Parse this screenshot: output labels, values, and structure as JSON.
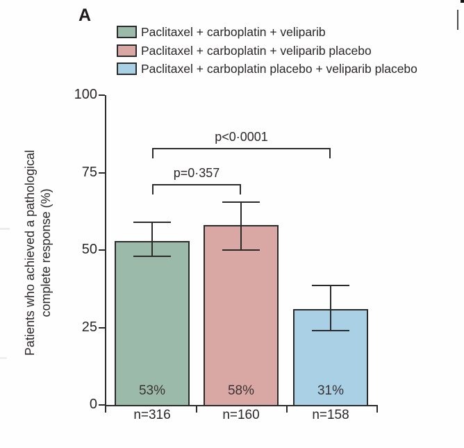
{
  "panel_label": "A",
  "legend": {
    "items": [
      {
        "label": "Paclitaxel + carboplatin + veliparib",
        "color": "#9cbaa9"
      },
      {
        "label": "Paclitaxel + carboplatin + veliparib placebo",
        "color": "#d9a7a4"
      },
      {
        "label": "Paclitaxel + carboplatin placebo + veliparib placebo",
        "color": "#a9d0e4"
      }
    ]
  },
  "y_axis": {
    "label_line1": "Patients who achieved a pathological",
    "label_line2": "complete response (%)",
    "ticks": [
      {
        "label": "100",
        "value": 100
      },
      {
        "label": "75",
        "value": 75
      },
      {
        "label": "50",
        "value": 50
      },
      {
        "label": "25",
        "value": 25
      },
      {
        "label": "0",
        "value": 0
      }
    ]
  },
  "chart_data": {
    "type": "bar",
    "title": "",
    "ylabel": "Patients who achieved a pathological complete response (%)",
    "ylim": [
      0,
      100
    ],
    "yticks": [
      0,
      25,
      50,
      75,
      100
    ],
    "grid": false,
    "legend_position": "top",
    "categories": [
      "n=316",
      "n=160",
      "n=158"
    ],
    "series": [
      {
        "name": "Paclitaxel + carboplatin + veliparib",
        "value": 53,
        "bar_label": "53%",
        "n_label": "n=316",
        "ci_low": 48,
        "ci_high": 59,
        "color": "#9cbaa9"
      },
      {
        "name": "Paclitaxel + carboplatin + veliparib placebo",
        "value": 58,
        "bar_label": "58%",
        "n_label": "n=160",
        "ci_low": 50,
        "ci_high": 65.5,
        "color": "#d9a7a4"
      },
      {
        "name": "Paclitaxel + carboplatin placebo + veliparib placebo",
        "value": 31,
        "bar_label": "31%",
        "n_label": "n=158",
        "ci_low": 24,
        "ci_high": 38.5,
        "color": "#a9d0e4"
      }
    ],
    "comparisons": [
      {
        "label": "p=0·357",
        "from": 0,
        "to": 1
      },
      {
        "label": "p<0·0001",
        "from": 0,
        "to": 2
      }
    ]
  }
}
